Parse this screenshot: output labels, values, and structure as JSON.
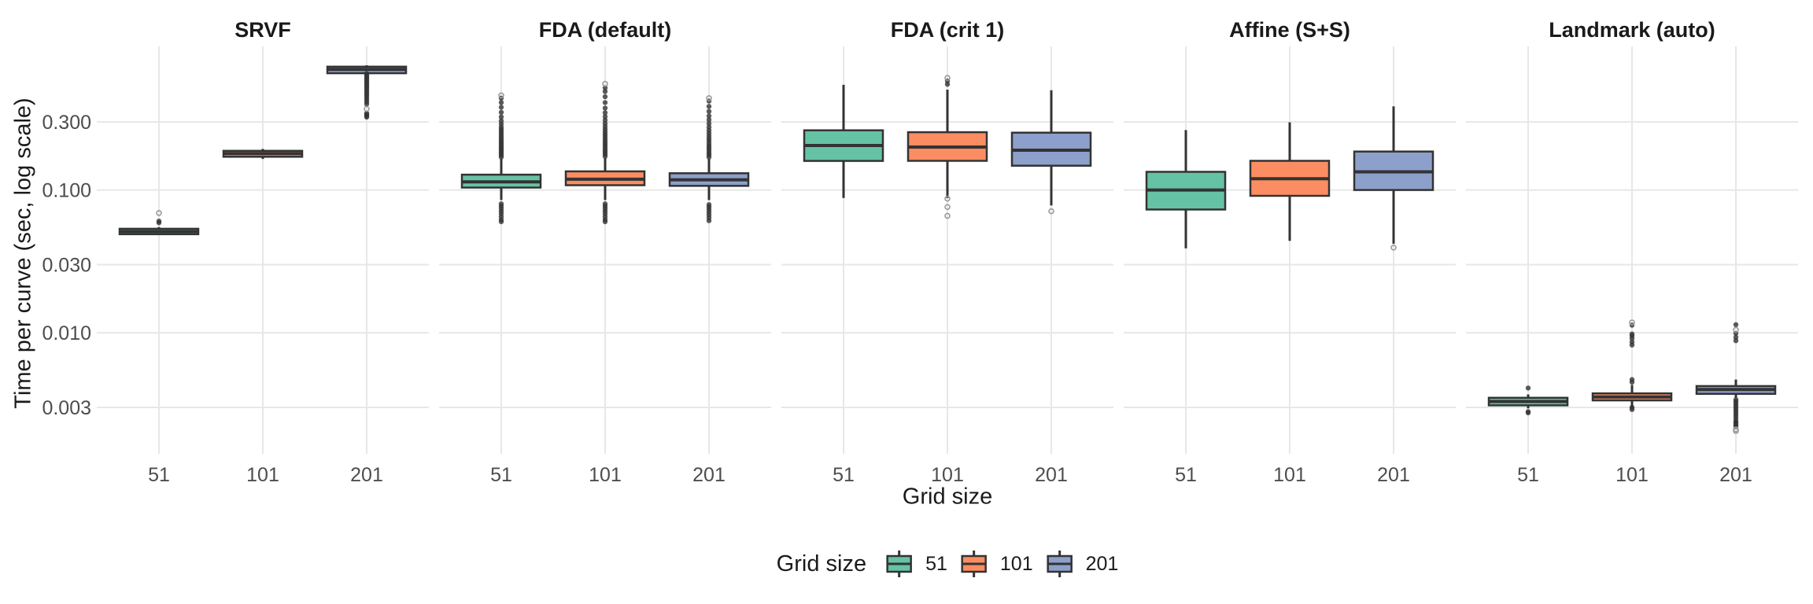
{
  "chart_data": {
    "type": "boxplot",
    "title": "",
    "ylabel": "Time per curve (sec, log scale)",
    "xlabel": "Grid size",
    "y_axis": {
      "scale": "log",
      "tick_labels": [
        "0.300",
        "0.100",
        "0.030",
        "0.010",
        "0.003"
      ],
      "tick_values": [
        0.3,
        0.1,
        0.03,
        0.01,
        0.003
      ],
      "range": [
        0.0015,
        1.03
      ],
      "grid": true
    },
    "x_axis": {
      "categories": [
        "51",
        "101",
        "201"
      ]
    },
    "legend": {
      "title": "Grid size",
      "position": "bottom",
      "items": [
        {
          "label": "51",
          "color": "#66C2A5"
        },
        {
          "label": "101",
          "color": "#FC8D62"
        },
        {
          "label": "201",
          "color": "#8DA0CB"
        }
      ]
    },
    "style": {
      "box_border": "#333333",
      "gridline": "#E7E7E7",
      "tick_text": "#4D4D4D",
      "title_text": "#1A1A1A",
      "background": "#FFFFFF"
    },
    "facets": [
      {
        "title": "SRVF",
        "boxes": [
          {
            "category": "51",
            "whisker_low": 0.0485,
            "q1": 0.049,
            "median": 0.0512,
            "q3": 0.0535,
            "whisker_high": 0.055,
            "outliers_high": [
              0.059,
              0.0605
            ],
            "outliers_low": [],
            "outliers_faint_high": [
              0.069
            ],
            "outliers_faint_low": []
          },
          {
            "category": "101",
            "whisker_low": 0.165,
            "q1": 0.171,
            "median": 0.18,
            "q3": 0.188,
            "whisker_high": 0.194,
            "outliers_high": [],
            "outliers_low": [],
            "outliers_faint_high": [],
            "outliers_faint_low": []
          },
          {
            "category": "201",
            "whisker_low": 0.645,
            "q1": 0.658,
            "median": 0.7,
            "q3": 0.731,
            "whisker_high": 0.748,
            "outliers_high": [],
            "outliers_low": [
              0.655,
              0.64,
              0.625,
              0.61,
              0.595,
              0.58,
              0.565,
              0.55,
              0.535,
              0.52,
              0.505,
              0.49,
              0.475,
              0.46,
              0.445,
              0.43,
              0.415,
              0.4,
              0.345,
              0.338,
              0.33,
              0.324
            ],
            "outliers_faint_high": [],
            "outliers_faint_low": [
              0.37
            ]
          }
        ]
      },
      {
        "title": "FDA (default)",
        "boxes": [
          {
            "category": "51",
            "whisker_low": 0.085,
            "q1": 0.104,
            "median": 0.114,
            "q3": 0.128,
            "whisker_high": 0.165,
            "outliers_high": [
              0.17,
              0.175,
              0.18,
              0.185,
              0.19,
              0.195,
              0.2,
              0.206,
              0.212,
              0.218,
              0.225,
              0.232,
              0.24,
              0.248,
              0.257,
              0.266,
              0.276,
              0.29,
              0.305,
              0.325,
              0.35,
              0.38,
              0.41,
              0.44
            ],
            "outliers_low": [
              0.08,
              0.077,
              0.074,
              0.071,
              0.068,
              0.065,
              0.062,
              0.06
            ],
            "outliers_faint_high": [
              0.46
            ],
            "outliers_faint_low": []
          },
          {
            "category": "101",
            "whisker_low": 0.085,
            "q1": 0.108,
            "median": 0.119,
            "q3": 0.135,
            "whisker_high": 0.168,
            "outliers_high": [
              0.172,
              0.178,
              0.184,
              0.19,
              0.197,
              0.204,
              0.211,
              0.219,
              0.227,
              0.236,
              0.245,
              0.255,
              0.266,
              0.278,
              0.292,
              0.308,
              0.326,
              0.348,
              0.375,
              0.41,
              0.45,
              0.49,
              0.52
            ],
            "outliers_low": [
              0.08,
              0.077,
              0.074,
              0.071,
              0.068,
              0.065,
              0.062,
              0.06
            ],
            "outliers_faint_high": [
              0.555
            ],
            "outliers_faint_low": []
          },
          {
            "category": "201",
            "whisker_low": 0.085,
            "q1": 0.107,
            "median": 0.118,
            "q3": 0.131,
            "whisker_high": 0.165,
            "outliers_high": [
              0.17,
              0.176,
              0.182,
              0.189,
              0.196,
              0.203,
              0.211,
              0.22,
              0.229,
              0.239,
              0.25,
              0.262,
              0.276,
              0.292,
              0.31,
              0.33,
              0.355,
              0.385,
              0.42
            ],
            "outliers_low": [
              0.079,
              0.076,
              0.073,
              0.07,
              0.067,
              0.064,
              0.061
            ],
            "outliers_faint_high": [
              0.44
            ],
            "outliers_faint_low": []
          }
        ]
      },
      {
        "title": "FDA (crit 1)",
        "boxes": [
          {
            "category": "51",
            "whisker_low": 0.088,
            "q1": 0.16,
            "median": 0.205,
            "q3": 0.262,
            "whisker_high": 0.545,
            "outliers_high": [],
            "outliers_low": [],
            "outliers_faint_high": [],
            "outliers_faint_low": []
          },
          {
            "category": "101",
            "whisker_low": 0.088,
            "q1": 0.16,
            "median": 0.2,
            "q3": 0.254,
            "whisker_high": 0.505,
            "outliers_high": [
              0.55,
              0.58
            ],
            "outliers_low": [],
            "outliers_faint_high": [
              0.61
            ],
            "outliers_faint_low": [
              0.087,
              0.076,
              0.066
            ]
          },
          {
            "category": "201",
            "whisker_low": 0.078,
            "q1": 0.148,
            "median": 0.19,
            "q3": 0.252,
            "whisker_high": 0.5,
            "outliers_high": [],
            "outliers_low": [],
            "outliers_faint_high": [],
            "outliers_faint_low": [
              0.071
            ]
          }
        ]
      },
      {
        "title": "Affine (S+S)",
        "boxes": [
          {
            "category": "51",
            "whisker_low": 0.039,
            "q1": 0.073,
            "median": 0.1,
            "q3": 0.134,
            "whisker_high": 0.263,
            "outliers_high": [],
            "outliers_low": [],
            "outliers_faint_high": [],
            "outliers_faint_low": []
          },
          {
            "category": "101",
            "whisker_low": 0.044,
            "q1": 0.091,
            "median": 0.12,
            "q3": 0.16,
            "whisker_high": 0.298,
            "outliers_high": [],
            "outliers_low": [],
            "outliers_faint_high": [],
            "outliers_faint_low": []
          },
          {
            "category": "201",
            "whisker_low": 0.042,
            "q1": 0.1,
            "median": 0.134,
            "q3": 0.186,
            "whisker_high": 0.385,
            "outliers_high": [],
            "outliers_low": [],
            "outliers_faint_high": [],
            "outliers_faint_low": [
              0.0395
            ]
          }
        ]
      },
      {
        "title": "Landmark (auto)",
        "boxes": [
          {
            "category": "51",
            "whisker_low": 0.00295,
            "q1": 0.0031,
            "median": 0.0033,
            "q3": 0.0035,
            "whisker_high": 0.0037,
            "outliers_high": [
              0.0041
            ],
            "outliers_low": [
              0.0028,
              0.00275
            ],
            "outliers_faint_high": [],
            "outliers_faint_low": []
          },
          {
            "category": "101",
            "whisker_low": 0.00295,
            "q1": 0.00336,
            "median": 0.00355,
            "q3": 0.00376,
            "whisker_high": 0.0043,
            "outliers_high": [
              0.0113,
              0.0098,
              0.0095,
              0.0091,
              0.0086,
              0.0082,
              0.0047,
              0.0045
            ],
            "outliers_low": [
              0.003,
              0.0029
            ],
            "outliers_faint_high": [
              0.0118
            ],
            "outliers_faint_low": []
          },
          {
            "category": "201",
            "whisker_low": 0.0035,
            "q1": 0.00373,
            "median": 0.004,
            "q3": 0.00423,
            "whisker_high": 0.0047,
            "outliers_high": [
              0.0114,
              0.0099,
              0.0093,
              0.0088
            ],
            "outliers_low": [
              0.0034,
              0.0033,
              0.0032,
              0.0031,
              0.003,
              0.0029,
              0.0028,
              0.0027,
              0.0026,
              0.0025,
              0.0024,
              0.00235,
              0.0023,
              0.00225,
              0.0022
            ],
            "outliers_faint_high": [
              0.0105
            ],
            "outliers_faint_low": [
              0.0021,
              0.00205
            ]
          }
        ]
      }
    ]
  }
}
